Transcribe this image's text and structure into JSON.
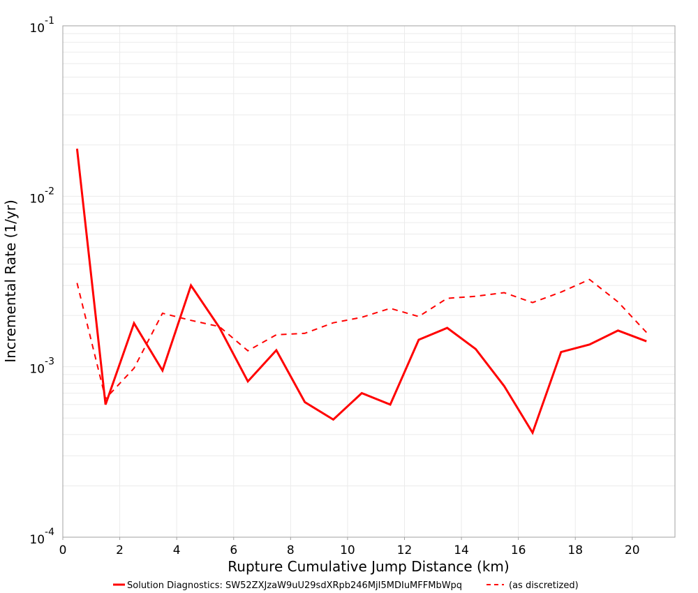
{
  "chart_data": {
    "type": "line",
    "title": "",
    "xlabel": "Rupture Cumulative Jump Distance (km)",
    "ylabel": "Incremental Rate (1/yr)",
    "xlim": [
      0,
      21.5
    ],
    "ylim": [
      0.0001,
      0.1
    ],
    "yscale": "log",
    "x_ticks": [
      "0",
      "2",
      "4",
      "6",
      "8",
      "10",
      "12",
      "14",
      "16",
      "18",
      "20"
    ],
    "y_ticks": [
      {
        "base": "10",
        "exp": "-1",
        "value": 0.1
      },
      {
        "base": "10",
        "exp": "-2",
        "value": 0.01
      },
      {
        "base": "10",
        "exp": "-3",
        "value": 0.001
      },
      {
        "base": "10",
        "exp": "-4",
        "value": 0.0001
      }
    ],
    "grid": true,
    "legend_position": "bottom",
    "x": [
      0.5,
      1.5,
      2.5,
      3.5,
      4.5,
      5.5,
      6.5,
      7.5,
      8.5,
      9.5,
      10.5,
      11.5,
      12.5,
      13.5,
      14.5,
      15.5,
      16.5,
      17.5,
      18.5,
      19.5,
      20.5
    ],
    "series": [
      {
        "name": "Solution Diagnostics: SW52ZXJzaW9uU29sdXRpb246MjI5MDIuMFFMbWpq",
        "color": "#ff0000",
        "style": "solid",
        "values": [
          0.019,
          0.0006,
          0.0018,
          0.00095,
          0.003,
          0.0017,
          0.00082,
          0.00125,
          0.00062,
          0.00049,
          0.0007,
          0.0006,
          0.00144,
          0.00169,
          0.00127,
          0.00077,
          0.00041,
          0.00122,
          0.00135,
          0.00163,
          0.00141
        ]
      },
      {
        "name": "(as discretized)",
        "color": "#ff0000",
        "style": "dashed",
        "values": [
          0.0031,
          0.00065,
          0.00098,
          0.00206,
          0.00187,
          0.00172,
          0.00124,
          0.00154,
          0.00157,
          0.00181,
          0.00195,
          0.0022,
          0.00197,
          0.00252,
          0.00259,
          0.00272,
          0.00238,
          0.00274,
          0.00325,
          0.0024,
          0.00159
        ]
      }
    ]
  },
  "legend": {
    "items": [
      {
        "label": "Solution Diagnostics: SW52ZXJzaW9uU29sdXRpb246MjI5MDIuMFFMbWpq",
        "style": "solid",
        "color": "#ff0000"
      },
      {
        "label": "(as discretized)",
        "style": "dashed",
        "color": "#ff0000"
      }
    ]
  }
}
